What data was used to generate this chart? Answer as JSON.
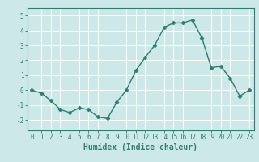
{
  "x": [
    0,
    1,
    2,
    3,
    4,
    5,
    6,
    7,
    8,
    9,
    10,
    11,
    12,
    13,
    14,
    15,
    16,
    17,
    18,
    19,
    20,
    21,
    22,
    23
  ],
  "y": [
    0.0,
    -0.2,
    -0.7,
    -1.3,
    -1.5,
    -1.2,
    -1.3,
    -1.8,
    -1.9,
    -0.8,
    0.0,
    1.3,
    2.2,
    3.0,
    4.2,
    4.5,
    4.5,
    4.7,
    3.5,
    1.5,
    1.6,
    0.8,
    -0.4,
    0.0
  ],
  "xlabel": "Humidex (Indice chaleur)",
  "xlim": [
    -0.5,
    23.5
  ],
  "ylim": [
    -2.7,
    5.5
  ],
  "yticks": [
    -2,
    -1,
    0,
    1,
    2,
    3,
    4,
    5
  ],
  "xticks": [
    0,
    1,
    2,
    3,
    4,
    5,
    6,
    7,
    8,
    9,
    10,
    11,
    12,
    13,
    14,
    15,
    16,
    17,
    18,
    19,
    20,
    21,
    22,
    23
  ],
  "line_color": "#2e7d6e",
  "marker_color": "#2e7d6e",
  "bg_color": "#cde8e8",
  "grid_color": "#ffffff",
  "axes_color": "#2e7d6e",
  "tick_label_color": "#2e7d6e",
  "xlabel_color": "#2e7d6e",
  "marker": "D",
  "markersize": 2.5,
  "linewidth": 1.0,
  "xlabel_fontsize": 7,
  "tick_fontsize": 5.5
}
